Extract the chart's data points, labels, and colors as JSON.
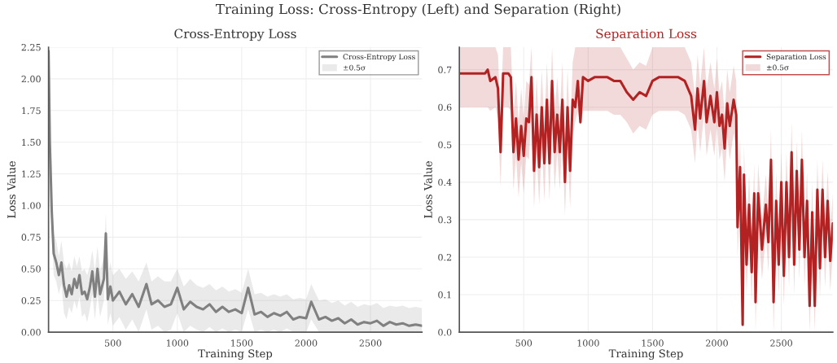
{
  "chart_data": [
    {
      "type": "other",
      "title": "Training Loss: Cross-Entropy (Left) and Separation (Right)"
    },
    {
      "type": "line",
      "title": "Cross-Entropy Loss",
      "xlabel": "Training Step",
      "ylabel": "Loss Value",
      "annotations": [
        "±0.5σ"
      ],
      "xlim": [
        0,
        2900
      ],
      "xticks": [
        500,
        1000,
        1500,
        2000,
        2500
      ],
      "ylim": [
        0,
        2.25
      ],
      "yticks": [
        {
          "value": 0,
          "label": "0.00"
        },
        {
          "value": 0.25,
          "label": "0.25"
        },
        {
          "value": 0.5,
          "label": "0.50"
        },
        {
          "value": 0.75,
          "label": "0.75"
        },
        {
          "value": 1,
          "label": "1.00"
        },
        {
          "value": 1.25,
          "label": "1.25"
        },
        {
          "value": 1.5,
          "label": "1.50"
        },
        {
          "value": 1.75,
          "label": "1.75"
        },
        {
          "value": 2,
          "label": "2.00"
        },
        {
          "value": 2.25,
          "label": "2.25"
        }
      ],
      "grid": true,
      "legend": "top right",
      "series": [
        {
          "name": "Cross-Entropy Loss",
          "color": "#808080",
          "x": [
            0,
            10,
            25,
            40,
            60,
            80,
            100,
            120,
            140,
            160,
            180,
            200,
            220,
            240,
            260,
            280,
            300,
            320,
            340,
            360,
            380,
            400,
            430,
            445,
            460,
            480,
            500,
            550,
            600,
            650,
            700,
            760,
            800,
            850,
            900,
            950,
            1000,
            1050,
            1100,
            1150,
            1200,
            1250,
            1300,
            1350,
            1400,
            1450,
            1500,
            1550,
            1600,
            1650,
            1700,
            1750,
            1800,
            1850,
            1900,
            1950,
            2000,
            2040,
            2100,
            2150,
            2200,
            2250,
            2300,
            2350,
            2400,
            2450,
            2500,
            2550,
            2600,
            2650,
            2700,
            2750,
            2800,
            2850,
            2900
          ],
          "values": [
            2.22,
            1.5,
            0.95,
            0.62,
            0.55,
            0.45,
            0.55,
            0.37,
            0.28,
            0.37,
            0.3,
            0.42,
            0.35,
            0.45,
            0.3,
            0.32,
            0.26,
            0.35,
            0.48,
            0.28,
            0.5,
            0.3,
            0.42,
            0.78,
            0.26,
            0.36,
            0.25,
            0.32,
            0.22,
            0.3,
            0.2,
            0.38,
            0.22,
            0.25,
            0.2,
            0.22,
            0.35,
            0.18,
            0.24,
            0.2,
            0.18,
            0.22,
            0.16,
            0.2,
            0.16,
            0.18,
            0.15,
            0.35,
            0.14,
            0.16,
            0.12,
            0.15,
            0.13,
            0.16,
            0.1,
            0.12,
            0.11,
            0.24,
            0.1,
            0.12,
            0.09,
            0.11,
            0.07,
            0.1,
            0.06,
            0.08,
            0.07,
            0.09,
            0.05,
            0.08,
            0.06,
            0.07,
            0.05,
            0.06,
            0.05
          ],
          "lower": [
            2.0,
            1.3,
            0.8,
            0.45,
            0.4,
            0.3,
            0.38,
            0.15,
            0.1,
            0.2,
            0.15,
            0.25,
            0.18,
            0.28,
            0.12,
            0.15,
            0.08,
            0.18,
            0.3,
            0.1,
            0.3,
            0.12,
            0.25,
            0.6,
            0.06,
            0.15,
            0.05,
            0.12,
            0.02,
            0.1,
            0.0,
            0.18,
            0.02,
            0.05,
            0.0,
            0.02,
            0.15,
            0.0,
            0.05,
            0.02,
            0.0,
            0.04,
            0.0,
            0.03,
            0.0,
            0.02,
            0.0,
            0.18,
            0.0,
            0.02,
            0.0,
            0.02,
            0.0,
            0.03,
            0.0,
            0.0,
            0.0,
            0.1,
            0.0,
            0.0,
            0.0,
            0.0,
            0.0,
            0.0,
            0.0,
            0.0,
            0.0,
            0.0,
            0.0,
            0.0,
            0.0,
            0.0,
            0.0,
            0.0,
            0.0
          ],
          "upper": [
            2.25,
            1.7,
            1.1,
            0.78,
            0.72,
            0.6,
            0.72,
            0.55,
            0.5,
            0.55,
            0.48,
            0.6,
            0.52,
            0.6,
            0.48,
            0.5,
            0.45,
            0.52,
            0.65,
            0.48,
            0.68,
            0.48,
            0.6,
            0.94,
            0.45,
            0.55,
            0.45,
            0.5,
            0.42,
            0.48,
            0.4,
            0.55,
            0.4,
            0.44,
            0.4,
            0.4,
            0.5,
            0.36,
            0.42,
            0.37,
            0.35,
            0.38,
            0.33,
            0.36,
            0.32,
            0.34,
            0.31,
            0.5,
            0.3,
            0.31,
            0.28,
            0.3,
            0.28,
            0.3,
            0.26,
            0.27,
            0.26,
            0.38,
            0.25,
            0.26,
            0.23,
            0.25,
            0.21,
            0.24,
            0.2,
            0.22,
            0.21,
            0.23,
            0.19,
            0.21,
            0.2,
            0.21,
            0.19,
            0.2,
            0.19
          ]
        }
      ]
    },
    {
      "type": "line",
      "title": "Separation Loss",
      "xlabel": "Training Step",
      "ylabel": "Loss Value",
      "annotations": [
        "±0.5σ"
      ],
      "xlim": [
        0,
        2900
      ],
      "xticks": [
        500,
        1000,
        1500,
        2000,
        2500
      ],
      "ylim": [
        0,
        0.76
      ],
      "yticks": [
        {
          "value": 0,
          "label": "0.0"
        },
        0.1,
        0.2,
        0.3,
        0.4,
        0.5,
        0.6,
        0.7
      ],
      "grid": true,
      "legend": "top right",
      "series": [
        {
          "name": "Separation Loss",
          "color": "#b22222",
          "x": [
            0,
            100,
            200,
            220,
            240,
            280,
            300,
            320,
            340,
            380,
            400,
            420,
            440,
            460,
            480,
            500,
            520,
            540,
            560,
            580,
            600,
            620,
            640,
            660,
            680,
            700,
            720,
            740,
            760,
            780,
            800,
            820,
            840,
            860,
            880,
            900,
            920,
            940,
            960,
            1000,
            1050,
            1100,
            1150,
            1200,
            1250,
            1300,
            1350,
            1400,
            1450,
            1500,
            1550,
            1600,
            1650,
            1700,
            1750,
            1800,
            1830,
            1850,
            1870,
            1900,
            1920,
            1950,
            1980,
            2000,
            2020,
            2040,
            2060,
            2080,
            2100,
            2130,
            2150,
            2160,
            2180,
            2200,
            2210,
            2230,
            2250,
            2270,
            2290,
            2300,
            2320,
            2350,
            2380,
            2400,
            2420,
            2440,
            2460,
            2480,
            2500,
            2520,
            2540,
            2560,
            2580,
            2600,
            2620,
            2640,
            2660,
            2680,
            2700,
            2720,
            2740,
            2760,
            2780,
            2800,
            2820,
            2840,
            2860,
            2880,
            2900
          ],
          "values": [
            0.69,
            0.69,
            0.69,
            0.7,
            0.67,
            0.68,
            0.65,
            0.48,
            0.69,
            0.69,
            0.68,
            0.48,
            0.57,
            0.46,
            0.55,
            0.47,
            0.57,
            0.56,
            0.68,
            0.43,
            0.58,
            0.44,
            0.6,
            0.45,
            0.62,
            0.45,
            0.67,
            0.48,
            0.58,
            0.48,
            0.62,
            0.4,
            0.6,
            0.43,
            0.62,
            0.6,
            0.67,
            0.56,
            0.68,
            0.67,
            0.68,
            0.68,
            0.68,
            0.67,
            0.67,
            0.64,
            0.62,
            0.64,
            0.63,
            0.67,
            0.68,
            0.68,
            0.68,
            0.68,
            0.67,
            0.63,
            0.54,
            0.65,
            0.57,
            0.67,
            0.56,
            0.63,
            0.56,
            0.64,
            0.55,
            0.58,
            0.49,
            0.61,
            0.55,
            0.62,
            0.58,
            0.28,
            0.44,
            0.02,
            0.42,
            0.18,
            0.34,
            0.16,
            0.37,
            0.08,
            0.37,
            0.22,
            0.34,
            0.24,
            0.46,
            0.08,
            0.35,
            0.18,
            0.4,
            0.15,
            0.4,
            0.2,
            0.48,
            0.18,
            0.43,
            0.22,
            0.46,
            0.2,
            0.35,
            0.07,
            0.32,
            0.07,
            0.38,
            0.17,
            0.38,
            0.2,
            0.35,
            0.19,
            0.29
          ],
          "lower": [
            0.6,
            0.6,
            0.6,
            0.6,
            0.59,
            0.6,
            0.57,
            0.39,
            0.6,
            0.6,
            0.59,
            0.38,
            0.47,
            0.36,
            0.45,
            0.37,
            0.47,
            0.46,
            0.58,
            0.33,
            0.48,
            0.34,
            0.5,
            0.35,
            0.52,
            0.35,
            0.57,
            0.38,
            0.48,
            0.38,
            0.52,
            0.31,
            0.5,
            0.33,
            0.52,
            0.56,
            0.59,
            0.55,
            0.59,
            0.59,
            0.59,
            0.59,
            0.59,
            0.58,
            0.58,
            0.56,
            0.53,
            0.55,
            0.54,
            0.58,
            0.59,
            0.59,
            0.59,
            0.59,
            0.58,
            0.54,
            0.45,
            0.56,
            0.48,
            0.58,
            0.47,
            0.54,
            0.47,
            0.55,
            0.46,
            0.49,
            0.4,
            0.52,
            0.46,
            0.53,
            0.49,
            0.2,
            0.36,
            0.0,
            0.34,
            0.1,
            0.26,
            0.08,
            0.29,
            0.0,
            0.29,
            0.14,
            0.26,
            0.16,
            0.38,
            0.0,
            0.27,
            0.1,
            0.32,
            0.07,
            0.32,
            0.12,
            0.4,
            0.1,
            0.35,
            0.14,
            0.38,
            0.12,
            0.27,
            0.0,
            0.24,
            0.0,
            0.3,
            0.09,
            0.3,
            0.12,
            0.27,
            0.11,
            0.21
          ],
          "upper": [
            0.76,
            0.76,
            0.76,
            0.76,
            0.76,
            0.76,
            0.74,
            0.57,
            0.76,
            0.76,
            0.76,
            0.58,
            0.67,
            0.56,
            0.65,
            0.57,
            0.67,
            0.66,
            0.76,
            0.53,
            0.68,
            0.54,
            0.7,
            0.55,
            0.72,
            0.55,
            0.76,
            0.58,
            0.68,
            0.58,
            0.72,
            0.49,
            0.7,
            0.53,
            0.72,
            0.76,
            0.76,
            0.76,
            0.76,
            0.76,
            0.76,
            0.76,
            0.76,
            0.76,
            0.76,
            0.73,
            0.7,
            0.72,
            0.71,
            0.76,
            0.76,
            0.76,
            0.76,
            0.76,
            0.76,
            0.72,
            0.63,
            0.74,
            0.66,
            0.76,
            0.65,
            0.72,
            0.65,
            0.73,
            0.64,
            0.67,
            0.58,
            0.7,
            0.64,
            0.71,
            0.67,
            0.36,
            0.52,
            0.1,
            0.5,
            0.26,
            0.42,
            0.24,
            0.45,
            0.16,
            0.45,
            0.3,
            0.42,
            0.32,
            0.54,
            0.16,
            0.43,
            0.26,
            0.48,
            0.23,
            0.48,
            0.28,
            0.56,
            0.26,
            0.51,
            0.3,
            0.54,
            0.28,
            0.43,
            0.15,
            0.4,
            0.15,
            0.46,
            0.25,
            0.46,
            0.28,
            0.43,
            0.27,
            0.37
          ]
        }
      ]
    }
  ]
}
